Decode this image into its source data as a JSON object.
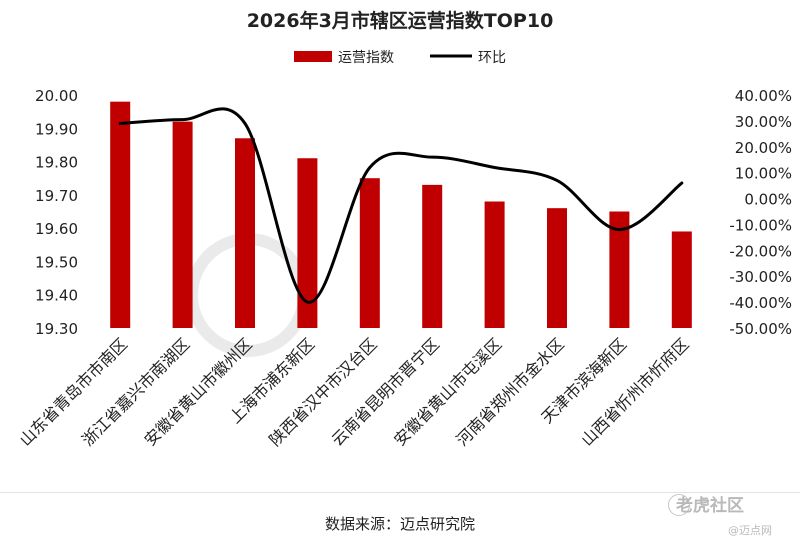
{
  "chart_data": {
    "type": "bar",
    "title": "2026年3月市辖区运营指数TOP10",
    "categories": [
      "山东省青岛市市南区",
      "浙江省嘉兴市南湖区",
      "安徽省黄山市徽州区",
      "上海市浦东新区",
      "陕西省汉中市汉台区",
      "云南省昆明市晋宁区",
      "安徽省黄山市屯溪区",
      "河南省郑州市金水区",
      "天津市滨海新区",
      "山西省忻州市忻府区"
    ],
    "series": [
      {
        "name": "运营指数",
        "type": "bar",
        "axis": "left",
        "color": "#c00000",
        "values": [
          19.98,
          19.92,
          19.87,
          19.81,
          19.75,
          19.73,
          19.68,
          19.66,
          19.65,
          19.59
        ]
      },
      {
        "name": "环比",
        "type": "line",
        "axis": "right",
        "color": "#000000",
        "values": [
          29.0,
          30.5,
          29.0,
          -40.0,
          12.0,
          16.0,
          12.0,
          7.0,
          -12.0,
          6.0
        ]
      }
    ],
    "y_left": {
      "min": 19.3,
      "max": 20.0,
      "step": 0.1,
      "ticks": [
        "19.30",
        "19.40",
        "19.50",
        "19.60",
        "19.70",
        "19.80",
        "19.90",
        "20.00"
      ]
    },
    "y_right": {
      "min": -50,
      "max": 40,
      "step": 10,
      "unit": "%",
      "ticks": [
        "-50.00%",
        "-40.00%",
        "-30.00%",
        "-20.00%",
        "-10.00%",
        "0.00%",
        "10.00%",
        "20.00%",
        "30.00%",
        "40.00%"
      ]
    },
    "legend": {
      "position": "top",
      "items": [
        "运营指数",
        "环比"
      ]
    },
    "grid": false
  },
  "footer": {
    "source": "数据来源：迈点研究院",
    "watermark_brand": "老虎社区",
    "watermark_sub": "@迈点网"
  }
}
